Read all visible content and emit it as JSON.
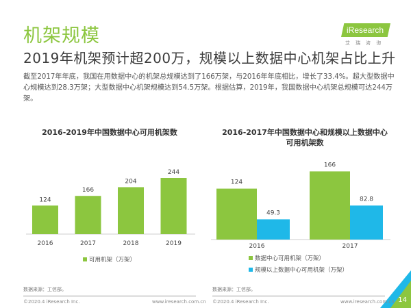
{
  "header": {
    "title": "机架规模",
    "subtitle": "2019年机架预计超200万，规模以上数据中心机架占比上升",
    "logo": "iResearch",
    "logo_sub": "艾瑞咨询"
  },
  "body_text": "截至2017年年底，我国在用数据中心的机架总规模达到了166万架，与2016年年底相比，增长了33.4%。超大型数据中心规模达到28.3万架；大型数据中心机架规模达到54.5万架。根据估算，2019年，我国数据中心机架总规模可达244万架。",
  "colors": {
    "green": "#8cc63f",
    "blue": "#1fb8e8"
  },
  "chart_data": [
    {
      "type": "bar",
      "title": "2016-2019年中国数据中心可用机架数",
      "categories": [
        "2016",
        "2017",
        "2018",
        "2019"
      ],
      "series": [
        {
          "name": "可用机架（万架）",
          "values": [
            124,
            166,
            204,
            244
          ]
        }
      ],
      "legend": "bottom"
    },
    {
      "type": "bar",
      "title": "2016-2017年中国数据中心和规模以上数据中心可用机架数",
      "title_lines": [
        "2016-2017年中国数据中心和规模以上数据中心",
        "可用机架数"
      ],
      "categories": [
        "2016",
        "2017"
      ],
      "series": [
        {
          "name": "数据中心可用机架（万架）",
          "values": [
            124,
            166
          ]
        },
        {
          "name": "规模以上数据中心可用机架（万架）",
          "values": [
            49.3,
            82.8
          ]
        }
      ],
      "legend": "bottom"
    }
  ],
  "footer": {
    "source_left": "数据来源：工信部。",
    "source_right": "数据来源：工信部。",
    "copyright": "©2020.4 iResearch Inc.",
    "url": "www.iresearch.com.cn",
    "page": "14"
  }
}
